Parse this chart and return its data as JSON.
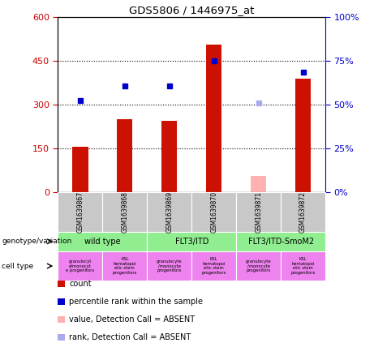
{
  "title": "GDS5806 / 1446975_at",
  "samples": [
    "GSM1639867",
    "GSM1639868",
    "GSM1639869",
    "GSM1639870",
    "GSM1639871",
    "GSM1639872"
  ],
  "count_values": [
    155,
    250,
    245,
    505,
    null,
    390
  ],
  "count_absent": [
    null,
    null,
    null,
    null,
    55,
    null
  ],
  "rank_values": [
    315,
    365,
    365,
    450,
    null,
    410
  ],
  "rank_absent": [
    null,
    null,
    null,
    null,
    305,
    null
  ],
  "count_color": "#cc1100",
  "count_absent_color": "#ffb0b0",
  "rank_color": "#0000cc",
  "rank_absent_color": "#aaaaee",
  "ylim_left": [
    0,
    600
  ],
  "ylim_right": [
    0,
    100
  ],
  "yticks_left": [
    0,
    150,
    300,
    450,
    600
  ],
  "yticks_right": [
    0,
    25,
    50,
    75,
    100
  ],
  "ytick_labels_left": [
    "0",
    "150",
    "300",
    "450",
    "600"
  ],
  "ytick_labels_right": [
    "0%",
    "25%",
    "50%",
    "75%",
    "100%"
  ],
  "left_tick_color": "#cc0000",
  "right_tick_color": "#0000cc",
  "genotype_groups": [
    {
      "label": "wild type",
      "span": [
        0,
        2
      ],
      "color": "#90ee90"
    },
    {
      "label": "FLT3/ITD",
      "span": [
        2,
        4
      ],
      "color": "#90ee90"
    },
    {
      "label": "FLT3/ITD-SmoM2",
      "span": [
        4,
        6
      ],
      "color": "#90ee90"
    }
  ],
  "cell_type_labels": [
    "granulocyt\ne/monocyt\ne progenitors",
    "KSL\nhematopoi\netic stem\nprogenitors",
    "granulocyte\n/monocyte\nprogenitors",
    "KSL\nhematopoi\netic stem\nprogenitors",
    "granulocyte\n/monocyte\nprogenitors",
    "KSL\nhematopoi\netic stem\nprogenitors"
  ],
  "cell_type_color": "#ee82ee",
  "sample_bg_color": "#c8c8c8",
  "bar_width": 0.35,
  "legend_items": [
    {
      "label": "count",
      "color": "#cc1100",
      "marker": "s"
    },
    {
      "label": "percentile rank within the sample",
      "color": "#0000cc",
      "marker": "s"
    },
    {
      "label": "value, Detection Call = ABSENT",
      "color": "#ffb0b0",
      "marker": "s"
    },
    {
      "label": "rank, Detection Call = ABSENT",
      "color": "#aaaaee",
      "marker": "s"
    }
  ]
}
